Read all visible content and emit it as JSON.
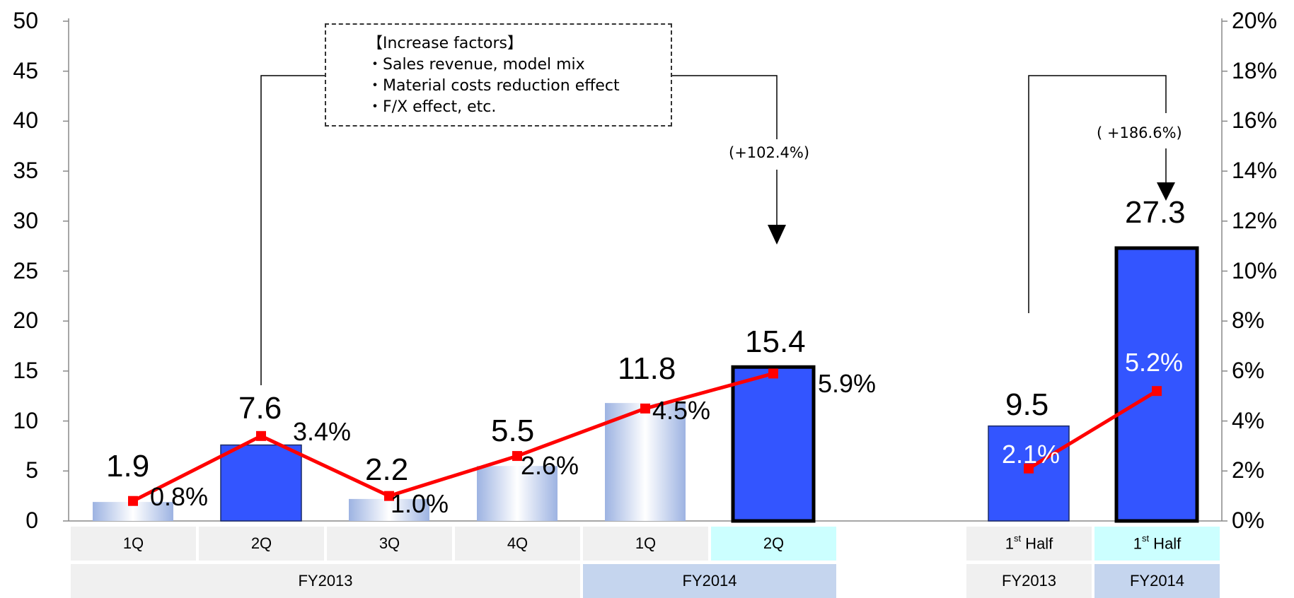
{
  "chart_data": {
    "type": "bar",
    "y_left": {
      "ylim": [
        0,
        50
      ],
      "ticks": [
        "0",
        "5",
        "10",
        "15",
        "20",
        "25",
        "30",
        "35",
        "40",
        "45",
        "50"
      ]
    },
    "y_right": {
      "ylim": [
        0,
        20
      ],
      "ticks": [
        "0%",
        "2%",
        "4%",
        "6%",
        "8%",
        "10%",
        "12%",
        "14%",
        "16%",
        "18%",
        "20%"
      ]
    },
    "categories": [
      "1Q",
      "2Q",
      "3Q",
      "4Q",
      "1Q",
      "2Q",
      "1st Half",
      "1st Half"
    ],
    "groups": [
      {
        "label": "FY2013",
        "span": [
          0,
          3
        ]
      },
      {
        "label": "FY2014",
        "span": [
          4,
          5
        ]
      },
      {
        "label": "FY2013",
        "span": [
          6,
          6
        ]
      },
      {
        "label": "FY2014",
        "span": [
          7,
          7
        ]
      }
    ],
    "series": [
      {
        "kind": "bar",
        "axis": "left",
        "values": [
          1.9,
          7.6,
          2.2,
          5.5,
          11.8,
          15.4,
          9.5,
          27.3
        ],
        "value_labels": [
          "1.9",
          "7.6",
          "2.2",
          "5.5",
          "11.8",
          "15.4",
          "9.5",
          "27.3"
        ]
      },
      {
        "kind": "line",
        "axis": "right",
        "color": "#ff0000",
        "values": [
          0.8,
          3.4,
          1.0,
          2.6,
          4.5,
          5.9,
          2.1,
          5.2
        ],
        "value_labels": [
          "0.8%",
          "3.4%",
          "1.0%",
          "2.6%",
          "4.5%",
          "5.9%",
          "2.1%",
          "5.2%"
        ]
      }
    ],
    "bar_styles": [
      "gradient",
      "solid",
      "gradient",
      "gradient",
      "gradient",
      "solid-bold",
      "solid",
      "solid-bold"
    ],
    "annotations": {
      "box_lines": [
        "【Increase factors】",
        "・Sales revenue, model mix",
        "・Material costs reduction effect",
        "・F/X effect, etc."
      ],
      "growth_quarter": "(+102.4%)",
      "growth_half": "( +186.6%)"
    },
    "colors": {
      "bar_solid": "#3355ff",
      "bar_gradient_edge": "#a9bee8",
      "line": "#ff0000",
      "cat_cell": "#f0f0f0",
      "cat_highlight": "#ccffff",
      "fy2014_cell": "#c5d5ee"
    }
  }
}
